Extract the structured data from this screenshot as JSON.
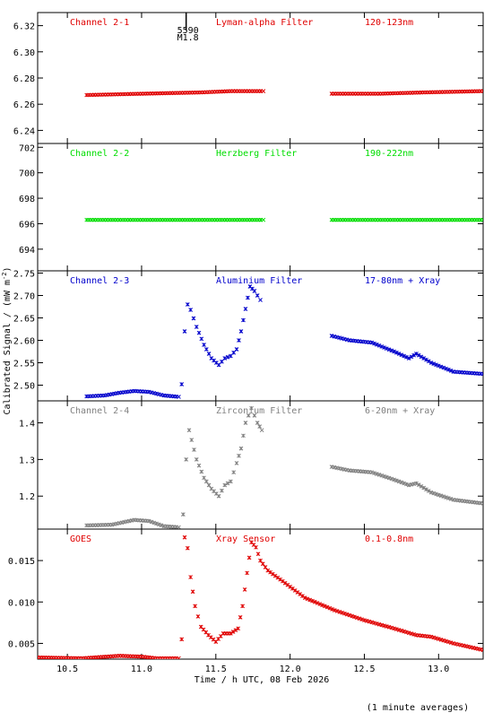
{
  "footer_note": "(1 minute averages)",
  "x_axis": {
    "label": "Time / h UTC, 08 Feb 2026",
    "range": [
      10.3,
      13.3
    ],
    "ticks": [
      "10.5",
      "11.0",
      "11.5",
      "12.0",
      "12.5",
      "13.0"
    ]
  },
  "y_axis_label": "Calibrated Signal / (mW m",
  "y_axis_label_sup": "-2",
  "y_axis_label_end": ")",
  "flare_marker": {
    "time": 11.3,
    "label_top": "5590",
    "label_bottom": "M1.8"
  },
  "chart_data": [
    {
      "type": "scatter",
      "channel": "Channel 2-1",
      "filter": "Lyman-alpha Filter",
      "band": "120-123nm",
      "color": "#e00000",
      "ylim": [
        6.23,
        6.33
      ],
      "ticks": [
        "6.24",
        "6.26",
        "6.28",
        "6.30",
        "6.32"
      ],
      "segments": [
        {
          "x": [
            10.63,
            11.0,
            11.4,
            11.6,
            11.82
          ],
          "y": [
            6.267,
            6.268,
            6.269,
            6.27,
            6.27
          ]
        },
        {
          "x": [
            12.28,
            12.6,
            12.9,
            13.3
          ],
          "y": [
            6.268,
            6.268,
            6.269,
            6.27
          ]
        }
      ]
    },
    {
      "type": "scatter",
      "channel": "Channel 2-2",
      "filter": "Herzberg Filter",
      "band": "190-222nm",
      "color": "#00dd00",
      "ylim": [
        692.3,
        702.3
      ],
      "ticks": [
        "694",
        "696",
        "698",
        "700",
        "702"
      ],
      "segments": [
        {
          "x": [
            10.63,
            11.0,
            11.4,
            11.82
          ],
          "y": [
            696.3,
            696.3,
            696.3,
            696.3
          ]
        },
        {
          "x": [
            12.28,
            12.8,
            13.3
          ],
          "y": [
            696.3,
            696.3,
            696.3
          ]
        }
      ]
    },
    {
      "type": "scatter",
      "channel": "Channel 2-3",
      "filter": "Aluminium Filter",
      "band": "17-80nm + Xray",
      "color": "#0000cc",
      "ylim": [
        2.465,
        2.755
      ],
      "ticks": [
        "2.50",
        "2.55",
        "2.60",
        "2.65",
        "2.70",
        "2.75"
      ],
      "segments": [
        {
          "x": [
            10.63,
            10.75,
            10.85,
            10.95,
            11.05,
            11.15,
            11.25
          ],
          "y": [
            2.475,
            2.477,
            2.483,
            2.487,
            2.485,
            2.477,
            2.474
          ]
        },
        {
          "x": [
            11.27,
            11.29,
            11.31,
            11.33,
            11.37,
            11.42,
            11.47,
            11.52,
            11.56,
            11.6,
            11.64,
            11.67,
            11.7,
            11.73,
            11.76,
            11.8
          ],
          "y": [
            2.502,
            2.62,
            2.68,
            2.668,
            2.63,
            2.59,
            2.56,
            2.545,
            2.56,
            2.565,
            2.58,
            2.62,
            2.67,
            2.72,
            2.71,
            2.69
          ]
        },
        {
          "x": [
            12.28,
            12.4,
            12.55,
            12.7,
            12.8,
            12.85,
            12.95,
            13.1,
            13.3
          ],
          "y": [
            2.61,
            2.6,
            2.595,
            2.575,
            2.56,
            2.57,
            2.55,
            2.53,
            2.525
          ]
        }
      ]
    },
    {
      "type": "scatter",
      "channel": "Channel 2-4",
      "filter": "Zirconium Filter",
      "band": "6-20nm + Xray",
      "color": "#808080",
      "ylim": [
        1.11,
        1.46
      ],
      "ticks": [
        "1.2",
        "1.3",
        "1.4"
      ],
      "segments": [
        {
          "x": [
            10.63,
            10.8,
            10.95,
            11.05,
            11.15,
            11.25
          ],
          "y": [
            1.12,
            1.122,
            1.135,
            1.132,
            1.118,
            1.115
          ]
        },
        {
          "x": [
            11.28,
            11.3,
            11.32,
            11.37,
            11.42,
            11.47,
            11.52,
            11.56,
            11.6,
            11.64,
            11.67,
            11.7,
            11.74,
            11.78,
            11.81
          ],
          "y": [
            1.15,
            1.3,
            1.38,
            1.3,
            1.25,
            1.22,
            1.2,
            1.23,
            1.24,
            1.29,
            1.33,
            1.4,
            1.44,
            1.4,
            1.38
          ]
        },
        {
          "x": [
            12.28,
            12.4,
            12.55,
            12.7,
            12.8,
            12.85,
            12.95,
            13.1,
            13.3
          ],
          "y": [
            1.28,
            1.27,
            1.265,
            1.245,
            1.23,
            1.235,
            1.21,
            1.19,
            1.18
          ]
        }
      ]
    },
    {
      "type": "scatter",
      "channel": "GOES",
      "filter": "Xray Sensor",
      "band": "0.1-0.8nm",
      "color": "#e00000",
      "ylim": [
        0.0031,
        0.0188
      ],
      "ticks": [
        "0.005",
        "0.010",
        "0.015"
      ],
      "segments": [
        {
          "x": [
            10.3,
            10.6,
            10.85,
            11.0,
            11.1,
            11.25
          ],
          "y": [
            0.0033,
            0.0032,
            0.0035,
            0.0034,
            0.0032,
            0.0032
          ]
        },
        {
          "x": [
            11.27,
            11.29,
            11.31,
            11.33,
            11.36,
            11.4,
            11.45,
            11.5,
            11.55,
            11.6,
            11.65,
            11.68,
            11.71,
            11.74,
            11.77,
            11.8,
            11.85,
            11.95,
            12.1,
            12.3,
            12.5,
            12.7,
            12.85,
            12.95,
            13.1,
            13.3
          ],
          "y": [
            0.0055,
            0.0178,
            0.0165,
            0.013,
            0.0095,
            0.007,
            0.006,
            0.0052,
            0.0062,
            0.0062,
            0.0068,
            0.0095,
            0.0135,
            0.0172,
            0.0166,
            0.015,
            0.0138,
            0.0125,
            0.0105,
            0.009,
            0.0078,
            0.0068,
            0.006,
            0.0058,
            0.005,
            0.0042
          ]
        }
      ]
    }
  ]
}
